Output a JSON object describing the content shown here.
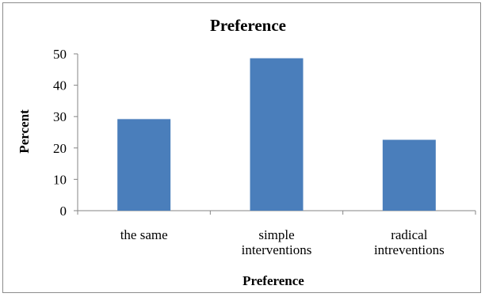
{
  "chart_data": {
    "type": "bar",
    "title": "Preference",
    "xlabel": "Preference",
    "ylabel": "Percent",
    "categories": [
      [
        "the same"
      ],
      [
        "simple",
        "interventions"
      ],
      [
        "radical",
        "intreventions"
      ]
    ],
    "values": [
      29.2,
      48.6,
      22.6
    ],
    "ylim": [
      0,
      50
    ],
    "yticks": [
      0,
      10,
      20,
      30,
      40,
      50
    ],
    "grid": false,
    "legend": "none",
    "bar_color": "#4a7ebb"
  }
}
